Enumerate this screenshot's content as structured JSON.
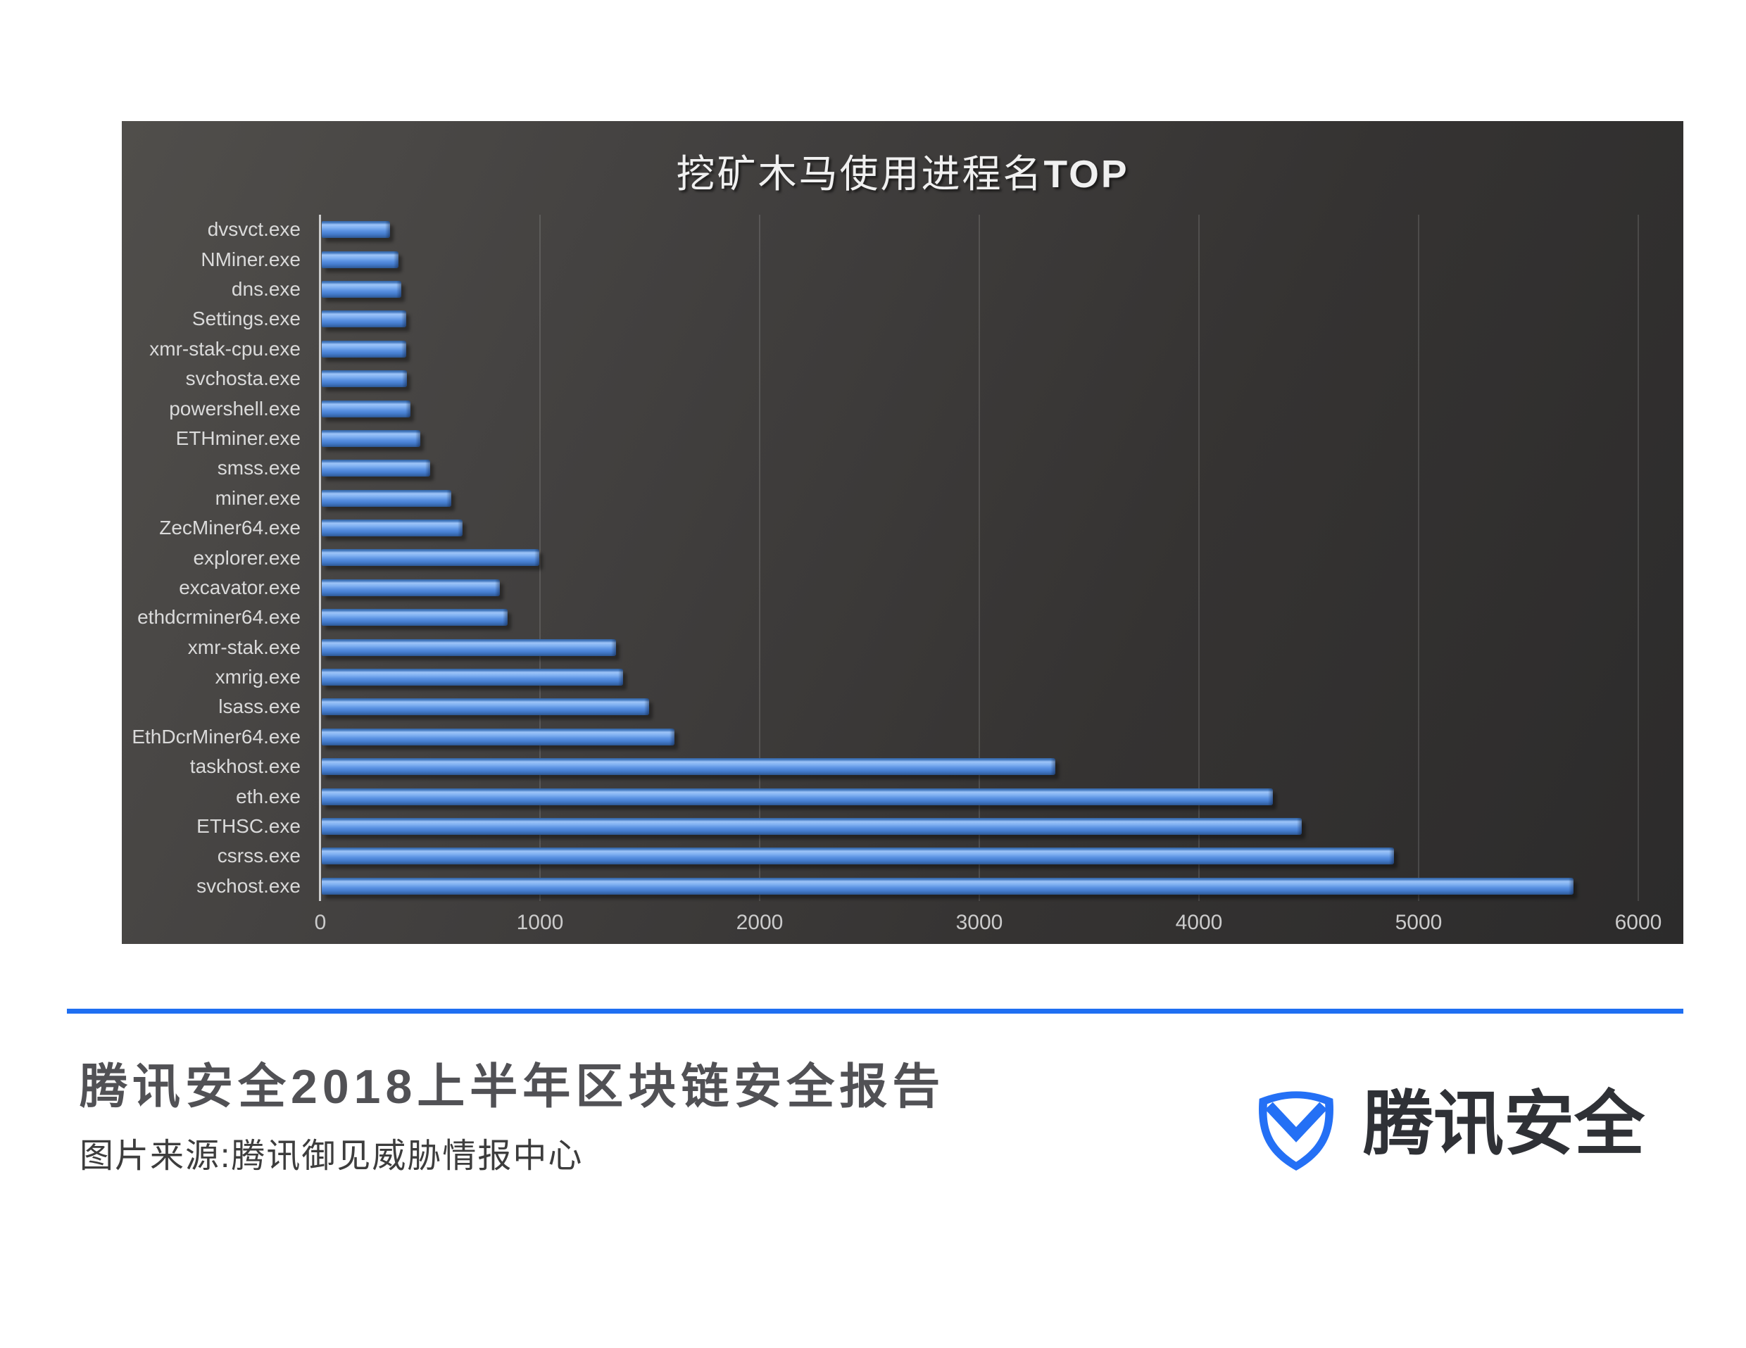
{
  "chart_data": {
    "type": "bar",
    "orientation": "horizontal",
    "title_cn": "挖矿木马使用进程名",
    "title_en": "TOP",
    "categories": [
      "dvsvct.exe",
      "NMiner.exe",
      "dns.exe",
      "Settings.exe",
      "xmr-stak-cpu.exe",
      "svchosta.exe",
      "powershell.exe",
      "ETHminer.exe",
      "smss.exe",
      "miner.exe",
      "ZecMiner64.exe",
      "explorer.exe",
      "excavator.exe",
      "ethdcrminer64.exe",
      "xmr-stak.exe",
      "xmrig.exe",
      "lsass.exe",
      "EthDcrMiner64.exe",
      "taskhost.exe",
      "eth.exe",
      "ETHSC.exe",
      "csrss.exe",
      "svchost.exe"
    ],
    "values": [
      310,
      350,
      362,
      385,
      386,
      388,
      405,
      450,
      495,
      590,
      640,
      990,
      812,
      845,
      1340,
      1372,
      1490,
      1605,
      3340,
      4330,
      4460,
      4880,
      5700
    ],
    "xlim": [
      0,
      6000
    ],
    "x_ticks": [
      0,
      1000,
      2000,
      3000,
      4000,
      5000,
      6000
    ],
    "grid": true,
    "legend": "none",
    "bar_color": "#5b92e2",
    "plot_background": "dark gray gradient"
  },
  "footer": {
    "report_title": "腾讯安全2018上半年区块链安全报告",
    "source_line": "图片来源:腾讯御见威胁情报中心",
    "brand": "腾讯安全",
    "accent_color": "#1f6ff2"
  }
}
